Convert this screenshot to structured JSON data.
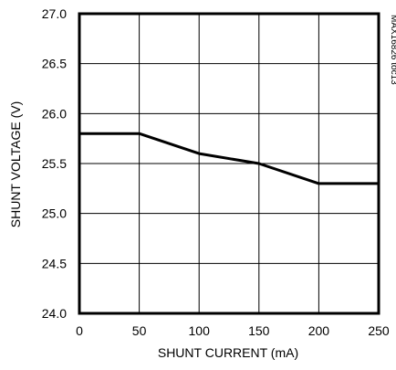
{
  "chart_data": {
    "type": "line",
    "title": "",
    "xlabel": "SHUNT CURRENT (mA)",
    "ylabel": "SHUNT VOLTAGE (V)",
    "xlim": [
      0,
      250
    ],
    "ylim": [
      24.0,
      27.0
    ],
    "x_ticks": [
      0,
      50,
      100,
      150,
      200,
      250
    ],
    "x_tick_labels": [
      "0",
      "50",
      "100",
      "150",
      "200",
      "250"
    ],
    "y_ticks": [
      24.0,
      24.5,
      25.0,
      25.5,
      26.0,
      26.5,
      27.0
    ],
    "y_tick_labels": [
      "24.0",
      "24.5",
      "25.0",
      "25.5",
      "26.0",
      "26.5",
      "27.0"
    ],
    "grid": true,
    "series": [
      {
        "x": [
          0,
          50,
          100,
          150,
          200,
          250
        ],
        "y": [
          25.8,
          25.8,
          25.6,
          25.5,
          25.3,
          25.3
        ],
        "color": "#000000"
      }
    ],
    "annotation": "MAX16826 toc13"
  }
}
